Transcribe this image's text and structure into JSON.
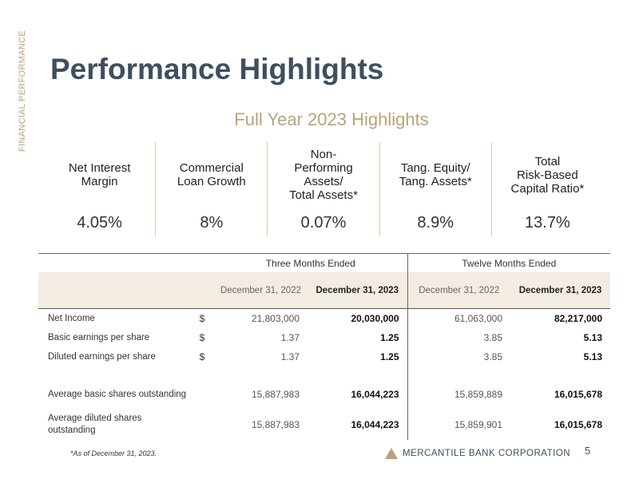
{
  "section_label": "FINANCIAL PERFORMANCE",
  "title": "Performance Highlights",
  "subtitle": "Full Year 2023 Highlights",
  "kpis": [
    {
      "label": "Net Interest\nMargin",
      "value": "4.05%"
    },
    {
      "label": "Commercial\nLoan Growth",
      "value": "8%"
    },
    {
      "label": "Non-\nPerforming\nAssets/\nTotal Assets*",
      "value": "0.07%"
    },
    {
      "label": "Tang. Equity/\nTang. Assets*",
      "value": "8.9%"
    },
    {
      "label": "Total\nRisk-Based\nCapital Ratio*",
      "value": "13.7%"
    }
  ],
  "table": {
    "group_headers": [
      "Three Months Ended",
      "Twelve Months Ended"
    ],
    "date_headers": [
      "December 31, 2022",
      "December 31, 2023",
      "December 31, 2022",
      "December 31, 2023"
    ],
    "rows": [
      {
        "label": "Net Income",
        "currency": "$",
        "values": [
          "21,803,000",
          "20,030,000",
          "61,063,000",
          "82,217,000"
        ]
      },
      {
        "label": "Basic earnings per share",
        "currency": "$",
        "values": [
          "1.37",
          "1.25",
          "3.85",
          "5.13"
        ]
      },
      {
        "label": "Diluted earnings per share",
        "currency": "$",
        "values": [
          "1.37",
          "1.25",
          "3.85",
          "5.13"
        ]
      },
      {
        "label": "Average basic shares outstanding",
        "currency": "",
        "values": [
          "15,887,983",
          "16,044,223",
          "15,859,889",
          "16,015,678"
        ]
      },
      {
        "label": "Average diluted shares outstanding",
        "currency": "",
        "values": [
          "15,887,983",
          "16,044,223",
          "15,859,901",
          "16,015,678"
        ]
      }
    ]
  },
  "footnote": "*As of December 31, 2023.",
  "logo_text": "MERCANTILE BANK CORPORATION",
  "page_number": "5",
  "colors": {
    "title": "#3f4f5f",
    "accent": "#b9a27a",
    "header_bg": "#f3ece2"
  }
}
